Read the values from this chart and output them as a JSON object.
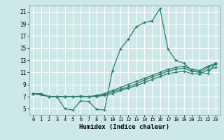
{
  "title": "",
  "xlabel": "Humidex (Indice chaleur)",
  "bg_color": "#cce8e8",
  "grid_color": "#ffffff",
  "line_color": "#2e7d6e",
  "xlim": [
    -0.5,
    23.5
  ],
  "ylim": [
    4,
    22
  ],
  "xticks": [
    0,
    1,
    2,
    3,
    4,
    5,
    6,
    7,
    8,
    9,
    10,
    11,
    12,
    13,
    14,
    15,
    16,
    17,
    18,
    19,
    20,
    21,
    22,
    23
  ],
  "yticks": [
    5,
    7,
    9,
    11,
    13,
    15,
    17,
    19,
    21
  ],
  "lines": [
    {
      "x": [
        0,
        1,
        2,
        3,
        4,
        5,
        6,
        7,
        8,
        9,
        10,
        11,
        12,
        13,
        14,
        15,
        16,
        17,
        18,
        19,
        20,
        21,
        22,
        23
      ],
      "y": [
        7.5,
        7.5,
        7.0,
        7.0,
        5.0,
        4.8,
        6.3,
        6.2,
        4.9,
        4.8,
        11.3,
        14.8,
        16.5,
        18.5,
        19.2,
        19.5,
        21.5,
        14.8,
        13.0,
        12.5,
        11.3,
        11.0,
        10.8,
        12.5
      ]
    },
    {
      "x": [
        0,
        1,
        2,
        3,
        4,
        5,
        6,
        7,
        8,
        9,
        10,
        11,
        12,
        13,
        14,
        15,
        16,
        17,
        18,
        19,
        20,
        21,
        22,
        23
      ],
      "y": [
        7.5,
        7.3,
        7.0,
        7.0,
        7.0,
        7.0,
        7.0,
        7.0,
        7.2,
        7.5,
        8.0,
        8.5,
        9.0,
        9.5,
        10.0,
        10.5,
        11.0,
        11.5,
        11.8,
        12.0,
        11.5,
        11.3,
        12.0,
        12.5
      ]
    },
    {
      "x": [
        0,
        1,
        2,
        3,
        4,
        5,
        6,
        7,
        8,
        9,
        10,
        11,
        12,
        13,
        14,
        15,
        16,
        17,
        18,
        19,
        20,
        21,
        22,
        23
      ],
      "y": [
        7.5,
        7.3,
        7.0,
        7.0,
        7.0,
        7.0,
        7.0,
        7.0,
        7.1,
        7.3,
        7.8,
        8.2,
        8.6,
        9.1,
        9.7,
        10.2,
        10.7,
        11.2,
        11.5,
        11.7,
        11.2,
        11.0,
        11.8,
        12.3
      ]
    },
    {
      "x": [
        0,
        1,
        2,
        3,
        4,
        5,
        6,
        7,
        8,
        9,
        10,
        11,
        12,
        13,
        14,
        15,
        16,
        17,
        18,
        19,
        20,
        21,
        22,
        23
      ],
      "y": [
        7.5,
        7.3,
        7.0,
        7.0,
        7.0,
        7.0,
        7.1,
        7.0,
        7.0,
        7.2,
        7.5,
        8.0,
        8.4,
        8.8,
        9.3,
        9.8,
        10.3,
        10.8,
        11.0,
        11.2,
        10.8,
        10.7,
        11.4,
        11.8
      ]
    }
  ]
}
